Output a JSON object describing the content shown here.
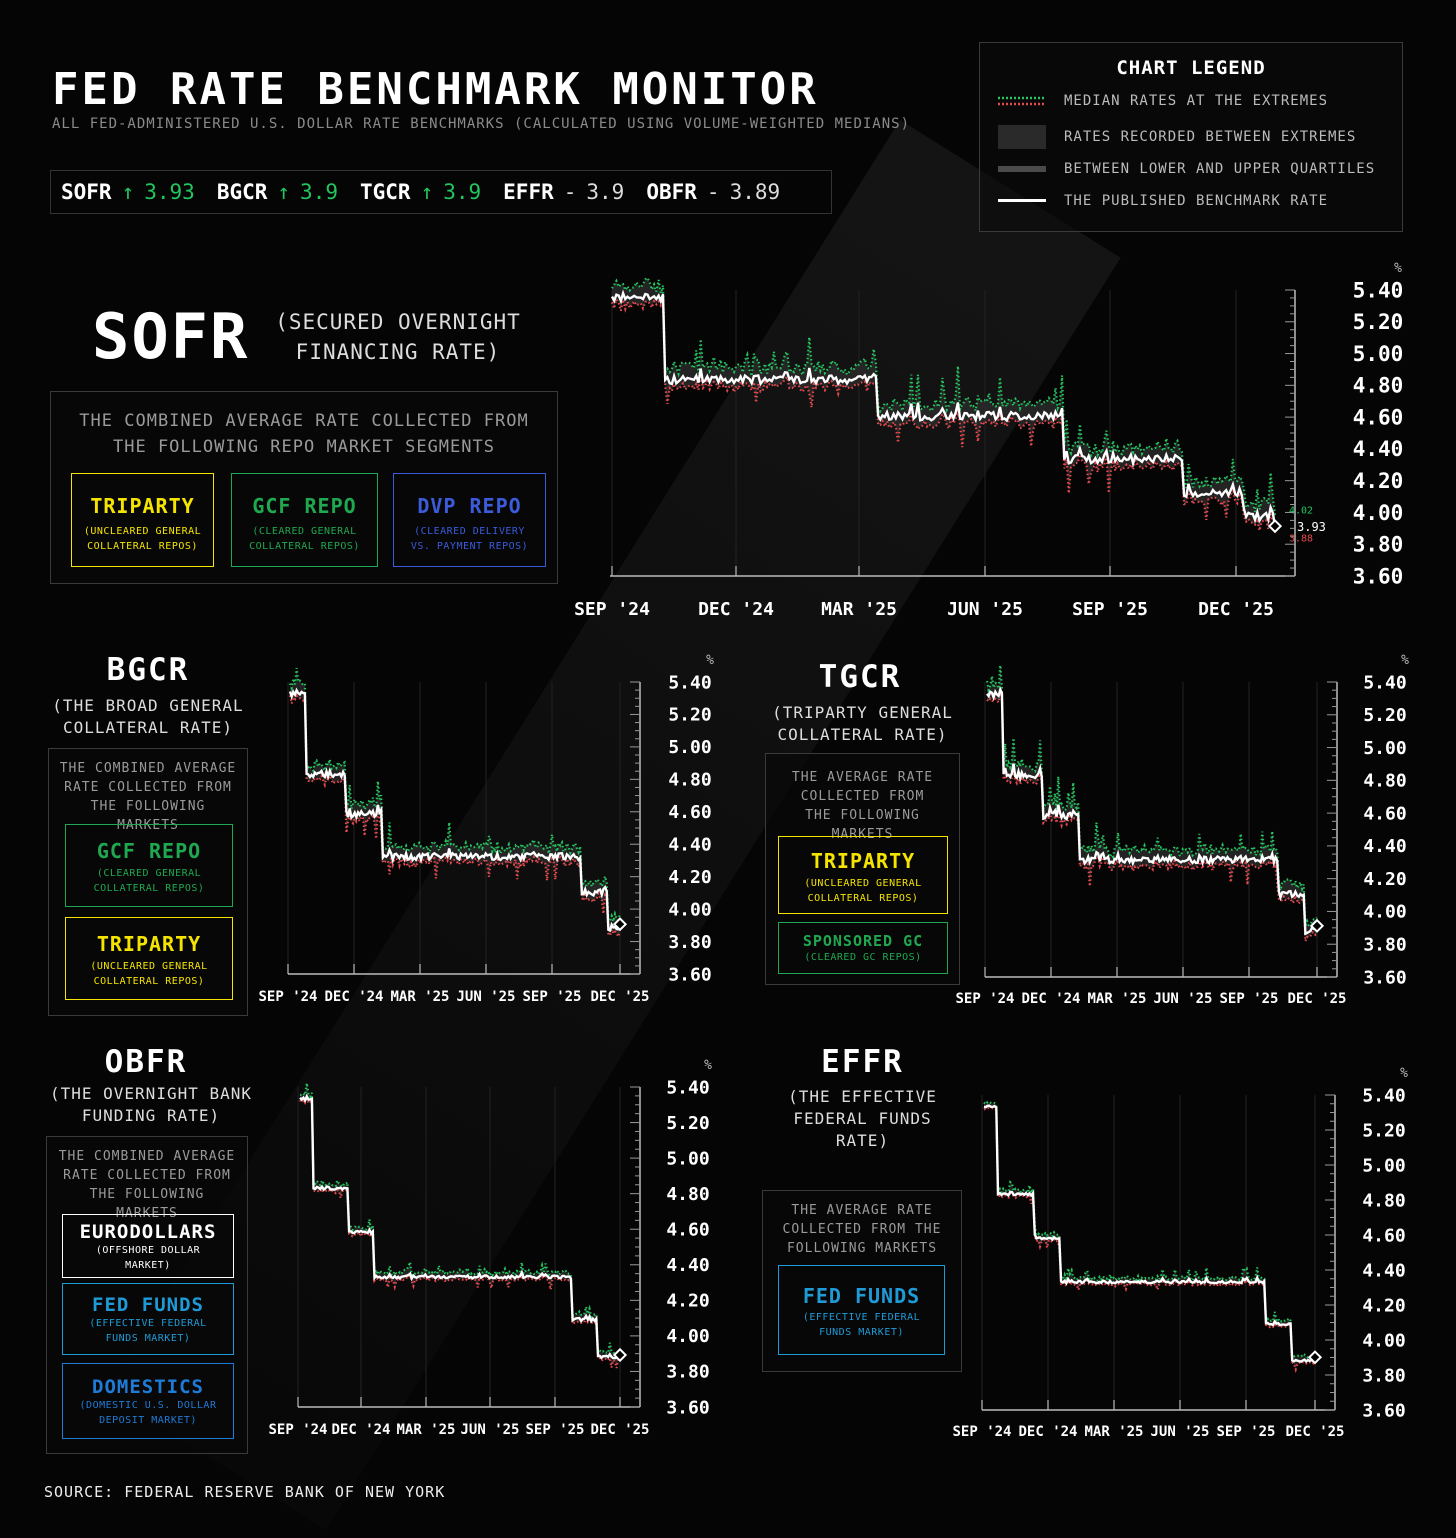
{
  "header": {
    "title": "FED RATE BENCHMARK MONITOR",
    "subtitle": "ALL FED-ADMINISTERED U.S. DOLLAR RATE BENCHMARKS (CALCULATED USING VOLUME-WEIGHTED MEDIANS)"
  },
  "ticker": [
    {
      "name": "SOFR",
      "arrow": "↑",
      "value": "3.93",
      "color": "#22c55e"
    },
    {
      "name": "BGCR",
      "arrow": "↑",
      "value": "3.9",
      "color": "#22c55e"
    },
    {
      "name": "TGCR",
      "arrow": "↑",
      "value": "3.9",
      "color": "#22c55e"
    },
    {
      "name": "EFFR",
      "arrow": "-",
      "value": "3.9",
      "color": "#dddddd"
    },
    {
      "name": "OBFR",
      "arrow": "-",
      "value": "3.89",
      "color": "#dddddd"
    }
  ],
  "legend": {
    "title": "CHART LEGEND",
    "items": [
      "MEDIAN RATES AT THE EXTREMES",
      "RATES RECORDED BETWEEN EXTREMES",
      "BETWEEN LOWER AND UPPER QUARTILES",
      "THE PUBLISHED BENCHMARK RATE"
    ]
  },
  "panels": {
    "sofr": {
      "name": "SOFR",
      "full": "(SECURED OVERNIGHT FINANCING RATE)",
      "desc": "THE COMBINED AVERAGE RATE COLLECTED FROM THE FOLLOWING REPO MARKET SEGMENTS",
      "segments": [
        {
          "name": "TRIPARTY",
          "sub": "(UNCLEARED GENERAL COLLATERAL REPOS)",
          "color": "#f5e400"
        },
        {
          "name": "GCF REPO",
          "sub": "(CLEARED GENERAL COLLATERAL REPOS)",
          "color": "#1fa84f"
        },
        {
          "name": "DVP REPO",
          "sub": "(CLEARED DELIVERY VS. PAYMENT REPOS)",
          "color": "#3b5bdb"
        }
      ]
    },
    "bgcr": {
      "name": "BGCR",
      "full": "(THE BROAD GENERAL COLLATERAL RATE)",
      "desc": "THE COMBINED AVERAGE RATE COLLECTED FROM THE FOLLOWING MARKETS",
      "segments": [
        {
          "name": "GCF REPO",
          "sub": "(CLEARED GENERAL COLLATERAL REPOS)",
          "color": "#1fa84f"
        },
        {
          "name": "TRIPARTY",
          "sub": "(UNCLEARED GENERAL COLLATERAL REPOS)",
          "color": "#f5e400"
        }
      ]
    },
    "tgcr": {
      "name": "TGCR",
      "full": "(TRIPARTY GENERAL COLLATERAL RATE)",
      "desc": "THE AVERAGE RATE COLLECTED FROM THE FOLLOWING MARKETS",
      "segments": [
        {
          "name": "TRIPARTY",
          "sub": "(UNCLEARED GENERAL COLLATERAL REPOS)",
          "color": "#f5e400"
        },
        {
          "name": "SPONSORED GC",
          "sub": "(CLEARED GC REPOS)",
          "color": "#1fa84f"
        }
      ]
    },
    "obfr": {
      "name": "OBFR",
      "full": "(THE OVERNIGHT BANK FUNDING RATE)",
      "desc": "THE COMBINED AVERAGE RATE COLLECTED FROM THE FOLLOWING MARKETS",
      "segments": [
        {
          "name": "EURODOLLARS",
          "sub": "(OFFSHORE DOLLAR MARKET)",
          "color": "#ffffff"
        },
        {
          "name": "FED FUNDS",
          "sub": "(EFFECTIVE FEDERAL FUNDS MARKET)",
          "color": "#1e9bd7"
        },
        {
          "name": "DOMESTICS",
          "sub": "(DOMESTIC U.S. DOLLAR DEPOSIT MARKET)",
          "color": "#1e7bd7"
        }
      ]
    },
    "effr": {
      "name": "EFFR",
      "full": "(THE EFFECTIVE FEDERAL FUNDS RATE)",
      "desc": "THE AVERAGE RATE COLLECTED FROM THE FOLLOWING MARKETS",
      "segments": [
        {
          "name": "FED FUNDS",
          "sub": "(EFFECTIVE FEDERAL FUNDS MARKET)",
          "color": "#1e9bd7"
        }
      ]
    }
  },
  "chart_data": [
    {
      "type": "line",
      "id": "sofr",
      "xlabels": [
        "SEP '24",
        "DEC '24",
        "MAR '25",
        "JUN '25",
        "SEP '25",
        "DEC '25"
      ],
      "ylabel": "%",
      "ylim": [
        3.6,
        5.4
      ],
      "yticks": [
        "5.40",
        "5.20",
        "5.00",
        "4.80",
        "4.60",
        "4.40",
        "4.20",
        "4.00",
        "3.80",
        "3.60"
      ],
      "steps": [
        [
          0,
          5.35
        ],
        [
          0.08,
          4.83
        ],
        [
          0.4,
          4.6
        ],
        [
          0.68,
          4.33
        ],
        [
          0.86,
          4.12
        ],
        [
          0.95,
          3.97
        ],
        [
          1.0,
          3.93
        ]
      ],
      "volatility": 0.09,
      "end_labels": {
        "high": "4.02",
        "mid": "3.93",
        "low": "3.88"
      },
      "legend_series": [
        "MEDIAN RATES AT THE EXTREMES",
        "THE PUBLISHED BENCHMARK RATE"
      ]
    },
    {
      "type": "line",
      "id": "bgcr",
      "xlabels": [
        "SEP '24",
        "DEC '24",
        "MAR '25",
        "JUN '25",
        "SEP '25",
        "DEC '25"
      ],
      "ylabel": "%",
      "ylim": [
        3.6,
        5.4
      ],
      "yticks": [
        "5.40",
        "5.20",
        "5.00",
        "4.80",
        "4.60",
        "4.40",
        "4.20",
        "4.00",
        "3.80",
        "3.60"
      ],
      "steps": [
        [
          0,
          5.32
        ],
        [
          0.05,
          4.83
        ],
        [
          0.17,
          4.58
        ],
        [
          0.28,
          4.32
        ],
        [
          0.88,
          4.1
        ],
        [
          0.96,
          3.88
        ],
        [
          1.0,
          3.9
        ]
      ],
      "volatility": 0.07
    },
    {
      "type": "line",
      "id": "tgcr",
      "xlabels": [
        "SEP '24",
        "DEC '24",
        "MAR '25",
        "JUN '25",
        "SEP '25",
        "DEC '25"
      ],
      "ylabel": "%",
      "ylim": [
        3.6,
        5.4
      ],
      "yticks": [
        "5.40",
        "5.20",
        "5.00",
        "4.80",
        "4.60",
        "4.40",
        "4.20",
        "4.00",
        "3.80",
        "3.60"
      ],
      "steps": [
        [
          0,
          5.32
        ],
        [
          0.05,
          4.83
        ],
        [
          0.17,
          4.58
        ],
        [
          0.28,
          4.31
        ],
        [
          0.88,
          4.1
        ],
        [
          0.96,
          3.88
        ],
        [
          1.0,
          3.9
        ]
      ],
      "volatility": 0.07
    },
    {
      "type": "line",
      "id": "obfr",
      "xlabels": [
        "SEP '24",
        "DEC '24",
        "MAR '25",
        "JUN '25",
        "SEP '25",
        "DEC '25"
      ],
      "ylabel": "%",
      "ylim": [
        3.6,
        5.4
      ],
      "yticks": [
        "5.40",
        "5.20",
        "5.00",
        "4.80",
        "4.60",
        "4.40",
        "4.20",
        "4.00",
        "3.80",
        "3.60"
      ],
      "steps": [
        [
          0,
          5.33
        ],
        [
          0.04,
          4.83
        ],
        [
          0.15,
          4.58
        ],
        [
          0.23,
          4.33
        ],
        [
          0.85,
          4.09
        ],
        [
          0.93,
          3.88
        ],
        [
          1.0,
          3.89
        ]
      ],
      "volatility": 0.03
    },
    {
      "type": "line",
      "id": "effr",
      "xlabels": [
        "SEP '24",
        "DEC '24",
        "MAR '25",
        "JUN '25",
        "SEP '25",
        "DEC '25"
      ],
      "ylabel": "%",
      "ylim": [
        3.6,
        5.4
      ],
      "yticks": [
        "5.40",
        "5.20",
        "5.00",
        "4.80",
        "4.60",
        "4.40",
        "4.20",
        "4.00",
        "3.80",
        "3.60"
      ],
      "steps": [
        [
          0,
          5.33
        ],
        [
          0.04,
          4.83
        ],
        [
          0.15,
          4.58
        ],
        [
          0.23,
          4.33
        ],
        [
          0.85,
          4.09
        ],
        [
          0.93,
          3.88
        ],
        [
          1.0,
          3.9
        ]
      ],
      "volatility": 0.025
    }
  ],
  "source": "SOURCE: FEDERAL RESERVE BANK OF NEW YORK"
}
